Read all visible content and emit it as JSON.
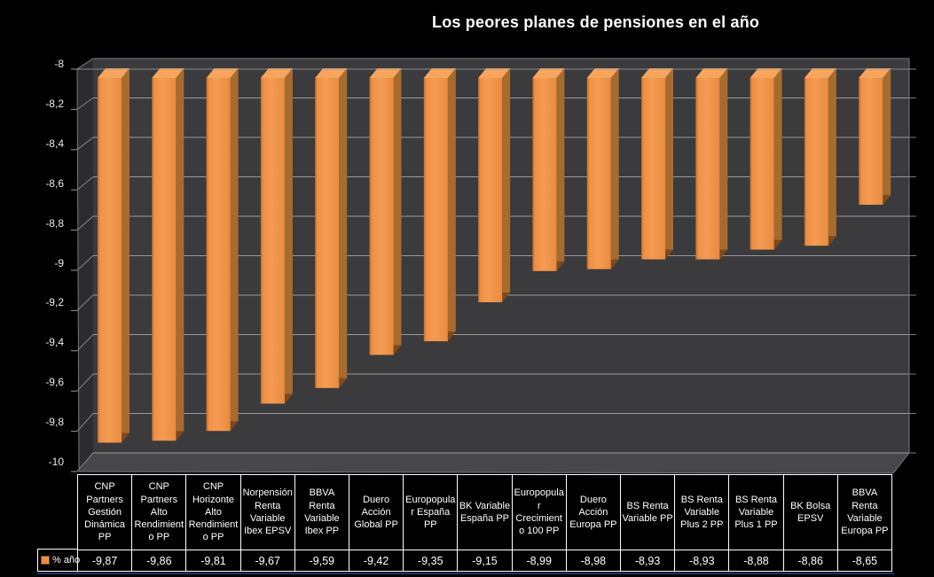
{
  "title": "Los peores planes de pensiones en el año",
  "legend": {
    "label": "% año",
    "swatch_color": "#ED8F43"
  },
  "colors": {
    "background": "#000000",
    "bar_front": "#F59B52",
    "bar_side": "#A86B2E",
    "bar_bottom": "#7E4A1B",
    "bar_top": "#F7A55C",
    "back_wall": "#3B3A3D",
    "left_wall": "#2C2C2E",
    "floor": "#474749",
    "gridline": "#9A9A9A",
    "table_border": "#FFFFFF",
    "underline": "#1F3864",
    "text": "#FFFFFF"
  },
  "chart_data": {
    "type": "bar",
    "projection": "3d",
    "title": "Los peores planes de pensiones en el año",
    "xlabel": "",
    "ylabel": "",
    "grid": true,
    "legend_position": "bottom-left",
    "decimal_separator": ",",
    "ylim": [
      -10,
      -8
    ],
    "ytick_step": 0.2,
    "ytick_labels": [
      "-8",
      "-8,2",
      "-8,4",
      "-8,6",
      "-8,8",
      "-9",
      "-9,2",
      "-9,4",
      "-9,6",
      "-9,8",
      "-10"
    ],
    "categories": [
      "CNP Partners Gestión Dinámica PP",
      "CNP Partners Alto Rendimiento PP",
      "CNP Horizonte Alto Rendimiento PP",
      "Norpensión Renta Variable Ibex EPSV",
      "BBVA Renta Variable Ibex PP",
      "Duero Acción Global PP",
      "Europopular España PP",
      "BK Variable España PP",
      "Europopular Crecimiento 100 PP",
      "Duero Acción Europa PP",
      "BS Renta Variable PP",
      "BS Renta Variable Plus 2 PP",
      "BS Renta Variable Plus 1 PP",
      "BK Bolsa EPSV",
      "BBVA Renta Variable Europa PP"
    ],
    "series": [
      {
        "name": "% año",
        "values": [
          -9.87,
          -9.86,
          -9.81,
          -9.67,
          -9.59,
          -9.42,
          -9.35,
          -9.15,
          -8.99,
          -8.98,
          -8.93,
          -8.93,
          -8.88,
          -8.86,
          -8.65
        ]
      }
    ],
    "value_labels": [
      "-9,87",
      "-9,86",
      "-9,81",
      "-9,67",
      "-9,59",
      "-9,42",
      "-9,35",
      "-9,15",
      "-8,99",
      "-8,98",
      "-8,93",
      "-8,93",
      "-8,88",
      "-8,86",
      "-8,65"
    ]
  }
}
